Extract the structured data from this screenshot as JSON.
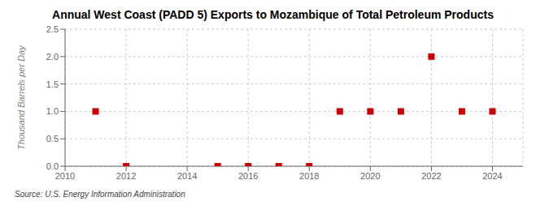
{
  "chart_data": {
    "type": "scatter",
    "title": "Annual West Coast (PADD 5) Exports to Mozambique of Total Petroleum Products",
    "y_label": "Thousand Barrels per Day",
    "source": "Source: U.S. Energy Information Administration",
    "x": [
      2011,
      2012,
      2015,
      2016,
      2017,
      2018,
      2019,
      2020,
      2021,
      2022,
      2023,
      2024
    ],
    "values": [
      1.0,
      0.0,
      0.0,
      0.0,
      0.0,
      0.0,
      1.0,
      1.0,
      1.0,
      2.0,
      1.0,
      1.0
    ],
    "color": "#cc0000",
    "marker": "square",
    "xlim": [
      2010,
      2025
    ],
    "ylim": [
      0.0,
      2.5
    ],
    "xticks": [
      2010,
      2012,
      2014,
      2016,
      2018,
      2020,
      2022,
      2024
    ],
    "yticks": [
      {
        "value": 0.0,
        "label": "0.0"
      },
      {
        "value": 0.5,
        "label": "0.5"
      },
      {
        "value": 1.0,
        "label": "1.0"
      },
      {
        "value": 1.5,
        "label": "1.5"
      },
      {
        "value": 2.0,
        "label": "2.0"
      },
      {
        "value": 2.5,
        "label": "2.5"
      }
    ],
    "grid": true
  }
}
